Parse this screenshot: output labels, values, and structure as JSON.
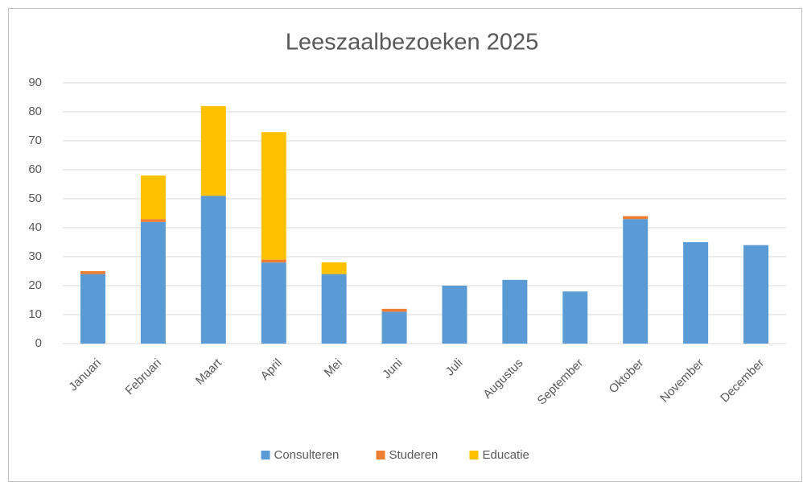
{
  "chart_data": {
    "type": "stacked_bar",
    "title": "Leeszaalbezoeken 2025",
    "categories": [
      "Januari",
      "Februari",
      "Maart",
      "April",
      "Mei",
      "Juni",
      "Juli",
      "Augustus",
      "September",
      "Oktober",
      "November",
      "December"
    ],
    "series": [
      {
        "name": "Consulteren",
        "color": "#5b9bd5",
        "values": [
          24,
          42,
          51,
          28,
          24,
          11,
          20,
          22,
          18,
          43,
          35,
          34
        ]
      },
      {
        "name": "Studeren",
        "color": "#ed7d31",
        "values": [
          1,
          1,
          0,
          1,
          0,
          1,
          0,
          0,
          0,
          1,
          0,
          0
        ]
      },
      {
        "name": "Educatie",
        "color": "#ffc000",
        "values": [
          0,
          15,
          31,
          44,
          4,
          0,
          0,
          0,
          0,
          0,
          0,
          0
        ]
      }
    ],
    "ylim": [
      0,
      90
    ],
    "yticks": [
      0,
      10,
      20,
      30,
      40,
      50,
      60,
      70,
      80,
      90
    ],
    "grid": true,
    "legend": "bottom"
  }
}
